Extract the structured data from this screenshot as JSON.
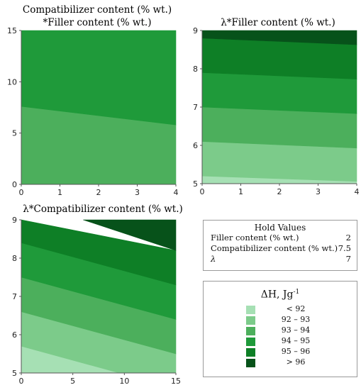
{
  "charts": [
    {
      "type": "heatmap",
      "title_lines": [
        "Compatibilizer content (% wt.)",
        "*Filler content (% wt.)"
      ],
      "xlim": [
        0,
        4
      ],
      "ylim": [
        0,
        15
      ],
      "xticks": [
        0,
        1,
        2,
        3,
        4
      ],
      "yticks": [
        0,
        5,
        10,
        15
      ],
      "regions": [
        {
          "range": "93 – 94",
          "polygon": [
            [
              0,
              0
            ],
            [
              4,
              0
            ],
            [
              4,
              5.8
            ],
            [
              0,
              7.6
            ]
          ]
        },
        {
          "range": "94 – 95",
          "polygon": [
            [
              0,
              7.6
            ],
            [
              4,
              5.8
            ],
            [
              4,
              15
            ],
            [
              0,
              15
            ]
          ]
        }
      ]
    },
    {
      "type": "heatmap",
      "title_lines": [
        "λ*Filler content (% wt.)"
      ],
      "xlim": [
        0,
        4
      ],
      "ylim": [
        5,
        9
      ],
      "xticks": [
        0,
        1,
        2,
        3,
        4
      ],
      "yticks": [
        5,
        6,
        7,
        8,
        9
      ],
      "regions": [
        {
          "range": "< 92",
          "polygon": [
            [
              0,
              5
            ],
            [
              4,
              5
            ],
            [
              4,
              5.06
            ],
            [
              0,
              5.2
            ]
          ]
        },
        {
          "range": "92 – 93",
          "polygon": [
            [
              0,
              5.2
            ],
            [
              4,
              5.06
            ],
            [
              4,
              5.93
            ],
            [
              0,
              6.1
            ]
          ]
        },
        {
          "range": "93 – 94",
          "polygon": [
            [
              0,
              6.1
            ],
            [
              4,
              5.93
            ],
            [
              4,
              6.83
            ],
            [
              0,
              7.0
            ]
          ]
        },
        {
          "range": "94 – 95",
          "polygon": [
            [
              0,
              7.0
            ],
            [
              4,
              6.83
            ],
            [
              4,
              7.73
            ],
            [
              0,
              7.9
            ]
          ]
        },
        {
          "range": "95 – 96",
          "polygon": [
            [
              0,
              7.9
            ],
            [
              4,
              7.73
            ],
            [
              4,
              8.63
            ],
            [
              0,
              8.8
            ]
          ]
        },
        {
          "range": "> 96",
          "polygon": [
            [
              0,
              8.8
            ],
            [
              4,
              8.63
            ],
            [
              4,
              9
            ],
            [
              0,
              9
            ]
          ]
        }
      ]
    },
    {
      "type": "heatmap",
      "title_lines": [
        "λ*Compatibilizer content (% wt.)"
      ],
      "xlim": [
        0,
        15
      ],
      "ylim": [
        5,
        9
      ],
      "xticks": [
        0,
        5,
        10,
        15
      ],
      "yticks": [
        5,
        6,
        7,
        8,
        9
      ],
      "regions": [
        {
          "range": "< 92",
          "polygon": [
            [
              0,
              5
            ],
            [
              9.5,
              5
            ],
            [
              0,
              5.7
            ]
          ]
        },
        {
          "range": "92 – 93",
          "polygon": [
            [
              0,
              5.7
            ],
            [
              9.5,
              5
            ],
            [
              15,
              5
            ],
            [
              15,
              5.5
            ],
            [
              0,
              6.6
            ]
          ]
        },
        {
          "range": "93 – 94",
          "polygon": [
            [
              0,
              6.6
            ],
            [
              15,
              5.5
            ],
            [
              15,
              6.4
            ],
            [
              0,
              7.5
            ]
          ]
        },
        {
          "range": "94 – 95",
          "polygon": [
            [
              0,
              7.5
            ],
            [
              15,
              6.4
            ],
            [
              15,
              7.3
            ],
            [
              0,
              8.4
            ]
          ]
        },
        {
          "range": "95 – 96",
          "polygon": [
            [
              0,
              8.4
            ],
            [
              15,
              7.3
            ],
            [
              15,
              8.2
            ],
            [
              0,
              9
            ],
            [
              0,
              9
            ]
          ]
        },
        {
          "range": "> 96",
          "polygon": [
            [
              6,
              9
            ],
            [
              15,
              8.2
            ],
            [
              15,
              9
            ]
          ]
        }
      ]
    }
  ],
  "hold_values": {
    "title": "Hold Values",
    "rows": [
      {
        "label": "Filler content (% wt.)",
        "value": "2"
      },
      {
        "label": "Compatibilizer content (% wt.)",
        "value": "7.5"
      },
      {
        "label": "λ",
        "value": "7"
      }
    ]
  },
  "legend": {
    "title": "ΔH, Jg-1",
    "items": [
      {
        "label": "< 92",
        "color": "#a6e0b4"
      },
      {
        "label": "92 – 93",
        "color": "#7ccb8a"
      },
      {
        "label": "93 – 94",
        "color": "#4caf5c"
      },
      {
        "label": "94 – 95",
        "color": "#1f9a3a"
      },
      {
        "label": "95 – 96",
        "color": "#0e7f26"
      },
      {
        "label": "> 96",
        "color": "#07521a"
      }
    ]
  }
}
